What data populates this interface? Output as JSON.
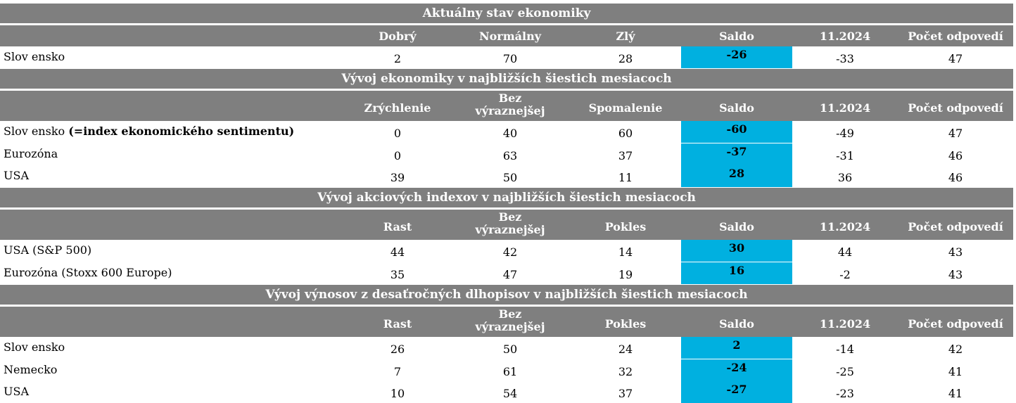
{
  "sections": [
    {
      "title": "Aktuálny stav ekonomiky",
      "headers": [
        "Dobrý",
        "Normálny",
        "Zlý",
        "Saldo",
        "11.2024",
        "Počet odpovedí"
      ],
      "rows": [
        {
          "label": "Slov ensko",
          "label_bold": "",
          "c1": "2",
          "c2": "70",
          "c3": "28",
          "saldo": "-26",
          "prev": "-33",
          "count": "47"
        }
      ]
    },
    {
      "title": "Vývoj ekonomiky v najbližších šiestich mesiacoch",
      "headers": [
        "Zrýchlenie",
        "Bez výraznejšej",
        "Spomalenie",
        "Saldo",
        "11.2024",
        "Počet odpovedí"
      ],
      "rows": [
        {
          "label": "Slov ensko ",
          "label_bold": "(=index ekonomického sentimentu)",
          "c1": "0",
          "c2": "40",
          "c3": "60",
          "saldo": "-60",
          "prev": "-49",
          "count": "47"
        },
        {
          "label": "Eurozóna",
          "label_bold": "",
          "c1": "0",
          "c2": "63",
          "c3": "37",
          "saldo": "-37",
          "prev": "-31",
          "count": "46"
        },
        {
          "label": "USA",
          "label_bold": "",
          "c1": "39",
          "c2": "50",
          "c3": "11",
          "saldo": "28",
          "prev": "36",
          "count": "46"
        }
      ]
    },
    {
      "title": "Vývoj akciových indexov v najbližších šiestich mesiacoch",
      "headers": [
        "Rast",
        "Bez výraznejšej",
        "Pokles",
        "Saldo",
        "11.2024",
        "Počet odpovedí"
      ],
      "rows": [
        {
          "label": "USA (S&P 500)",
          "label_bold": "",
          "c1": "44",
          "c2": "42",
          "c3": "14",
          "saldo": "30",
          "prev": "44",
          "count": "43"
        },
        {
          "label": "Eurozóna (Stoxx 600 Europe)",
          "label_bold": "",
          "c1": "35",
          "c2": "47",
          "c3": "19",
          "saldo": "16",
          "prev": "-2",
          "count": "43"
        }
      ]
    },
    {
      "title": "Vývoj výnosov z desaťročných dlhopisov v najbližších šiestich mesiacoch",
      "headers": [
        "Rast",
        "Bez výraznejšej",
        "Pokles",
        "Saldo",
        "11.2024",
        "Počet odpovedí"
      ],
      "rows": [
        {
          "label": "Slov ensko",
          "label_bold": "",
          "c1": "26",
          "c2": "50",
          "c3": "24",
          "saldo": "2",
          "prev": "-14",
          "count": "42"
        },
        {
          "label": "Nemecko",
          "label_bold": "",
          "c1": "7",
          "c2": "61",
          "c3": "32",
          "saldo": "-24",
          "prev": "-25",
          "count": "41"
        },
        {
          "label": "USA",
          "label_bold": "",
          "c1": "10",
          "c2": "54",
          "c3": "37",
          "saldo": "-27",
          "prev": "-23",
          "count": "41"
        }
      ]
    }
  ],
  "colors": {
    "header_bg": "#7f7f7f",
    "saldo_bg": "#00b0e0"
  }
}
